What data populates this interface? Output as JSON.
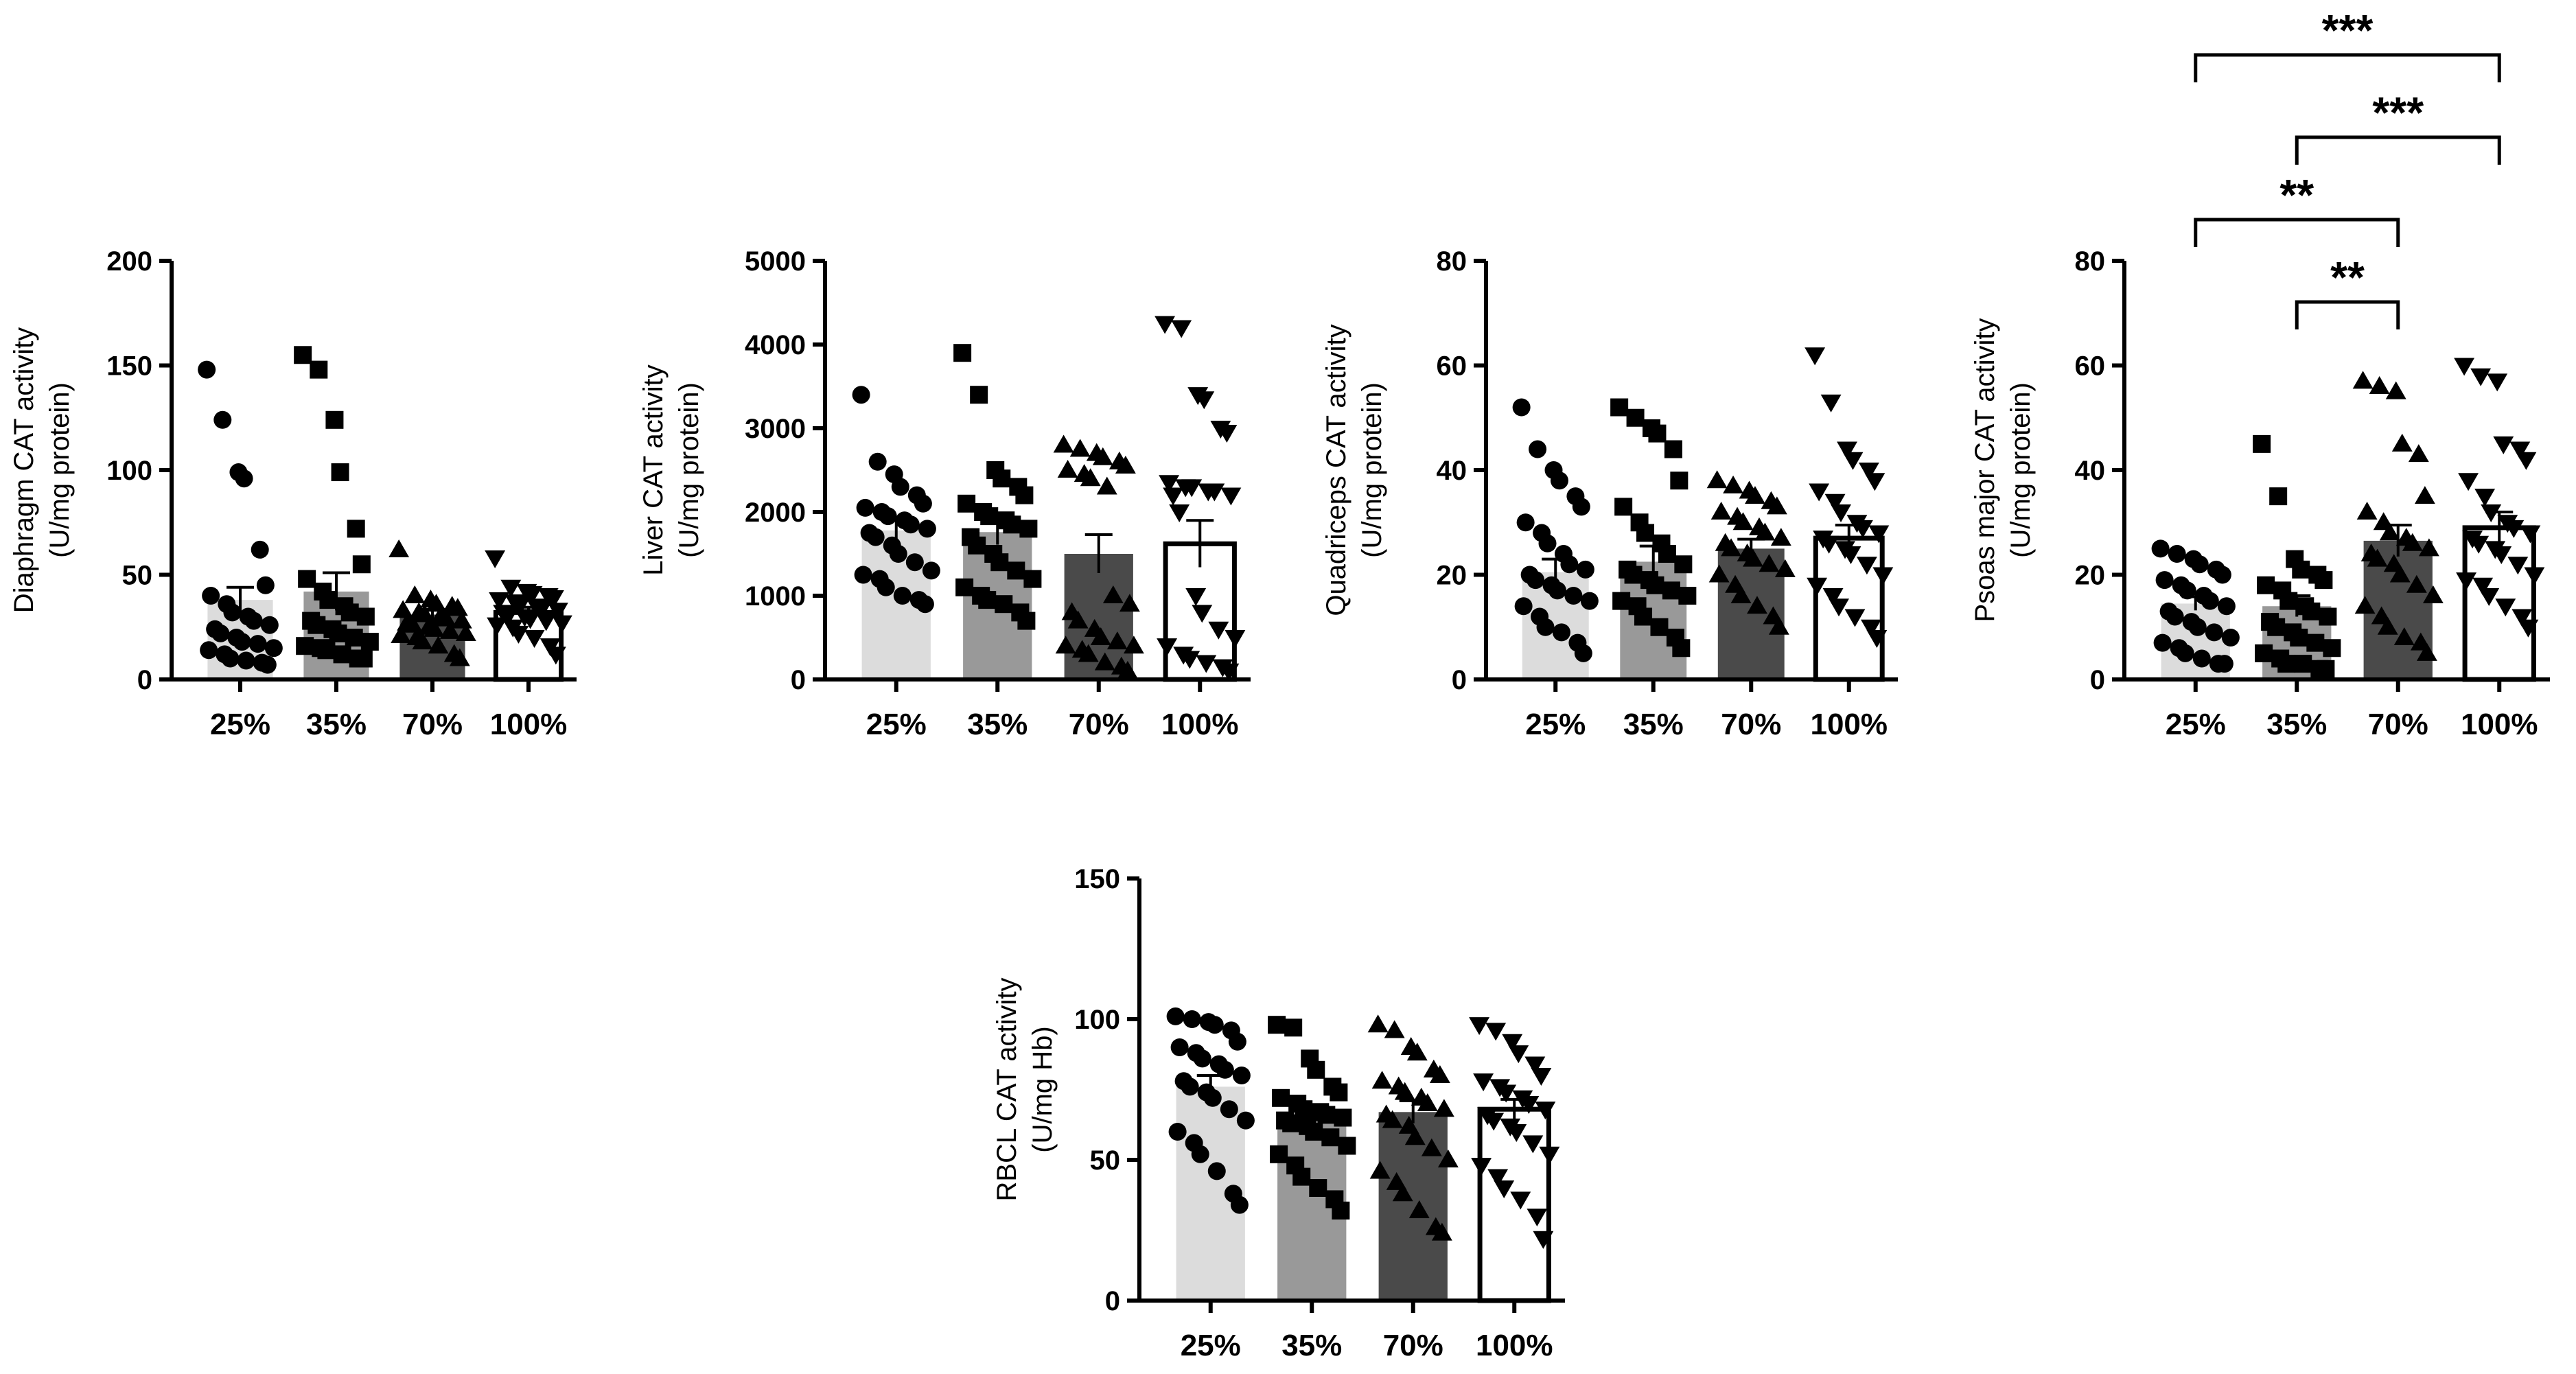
{
  "figure": {
    "background": "#ffffff"
  },
  "chart_data": [
    {
      "type": "bar",
      "id": "diaphragm",
      "title": "",
      "ylabel_line1": "Diaphragm CAT activity",
      "ylabel_line2": "(U/mg protein)",
      "categories": [
        "25%",
        "35%",
        "70%",
        "100%"
      ],
      "ylim": [
        0,
        200
      ],
      "yticks": [
        "0",
        "50",
        "100",
        "150",
        "200"
      ],
      "marker_shapes": [
        "circle",
        "square",
        "triangle-up",
        "triangle-down"
      ],
      "bar_fills": [
        "#dcdcdc",
        "#999999",
        "#4a4a4a",
        "#ffffff"
      ],
      "means": [
        38,
        42,
        31,
        32
      ],
      "sem": [
        6,
        9,
        2.5,
        2.5
      ],
      "points": [
        [
          148,
          124,
          99,
          96,
          62,
          45,
          40,
          36,
          32,
          30,
          28,
          26,
          24,
          22,
          20,
          18,
          17,
          15,
          14,
          12,
          10,
          9,
          8,
          7
        ],
        [
          155,
          148,
          124,
          99,
          72,
          55,
          48,
          42,
          38,
          35,
          32,
          30,
          28,
          26,
          24,
          22,
          20,
          18,
          16,
          15,
          14,
          12,
          10,
          10
        ],
        [
          62,
          40,
          38,
          36,
          35,
          34,
          33,
          32,
          31,
          30,
          29,
          28,
          27,
          26,
          25,
          24,
          23,
          22,
          21,
          20,
          18,
          16,
          12,
          10
        ],
        [
          58,
          44,
          42,
          41,
          40,
          39,
          38,
          37,
          36,
          35,
          34,
          33,
          32,
          31,
          30,
          29,
          28,
          27,
          26,
          25,
          22,
          20,
          16,
          12
        ]
      ],
      "significance": []
    },
    {
      "type": "bar",
      "id": "liver",
      "title": "",
      "ylabel_line1": "Liver CAT activity",
      "ylabel_line2": "(U/mg protein)",
      "categories": [
        "25%",
        "35%",
        "70%",
        "100%"
      ],
      "ylim": [
        0,
        5000
      ],
      "yticks": [
        "0",
        "1000",
        "2000",
        "3000",
        "4000",
        "5000"
      ],
      "marker_shapes": [
        "circle",
        "square",
        "triangle-up",
        "triangle-down"
      ],
      "bar_fills": [
        "#dcdcdc",
        "#999999",
        "#4a4a4a",
        "#ffffff"
      ],
      "means": [
        1780,
        1760,
        1500,
        1620
      ],
      "sem": [
        120,
        150,
        230,
        280
      ],
      "points": [
        [
          3400,
          2600,
          2450,
          2300,
          2200,
          2100,
          2050,
          2000,
          1950,
          1900,
          1850,
          1800,
          1750,
          1700,
          1600,
          1500,
          1400,
          1300,
          1250,
          1200,
          1100,
          1000,
          950,
          900
        ],
        [
          3900,
          3400,
          2500,
          2400,
          2300,
          2200,
          2100,
          2000,
          1950,
          1900,
          1850,
          1800,
          1700,
          1600,
          1500,
          1400,
          1300,
          1200,
          1100,
          1000,
          950,
          900,
          800,
          700
        ],
        [
          2800,
          2750,
          2700,
          2650,
          2600,
          2550,
          2500,
          2450,
          2400,
          2300,
          1000,
          900,
          800,
          700,
          600,
          500,
          450,
          400,
          400,
          350,
          300,
          200,
          150,
          100
        ],
        [
          4250,
          4200,
          3400,
          3350,
          3000,
          2950,
          2350,
          2300,
          2300,
          2250,
          2250,
          2200,
          2200,
          2000,
          1000,
          800,
          600,
          500,
          400,
          300,
          250,
          200,
          150,
          100
        ]
      ],
      "significance": []
    },
    {
      "type": "bar",
      "id": "quadriceps",
      "title": "",
      "ylabel_line1": "Quadriceps CAT activity",
      "ylabel_line2": "(U/mg protein)",
      "categories": [
        "25%",
        "35%",
        "70%",
        "100%"
      ],
      "ylim": [
        0,
        80
      ],
      "yticks": [
        "0",
        "20",
        "40",
        "60",
        "80"
      ],
      "marker_shapes": [
        "circle",
        "square",
        "triangle-up",
        "triangle-down"
      ],
      "bar_fills": [
        "#dcdcdc",
        "#999999",
        "#4a4a4a",
        "#ffffff"
      ],
      "means": [
        20.5,
        22.5,
        25,
        27
      ],
      "sem": [
        2.5,
        3,
        1.8,
        2.5
      ],
      "points": [
        [
          52,
          44,
          40,
          38,
          35,
          33,
          30,
          28,
          26,
          24,
          22,
          21,
          20,
          19,
          18,
          17,
          16,
          15,
          14,
          12,
          10,
          9,
          7,
          5
        ],
        [
          52,
          50,
          48,
          47,
          44,
          38,
          33,
          30,
          28,
          26,
          24,
          22,
          21,
          20,
          19,
          18,
          17,
          16,
          15,
          14,
          12,
          10,
          8,
          6
        ],
        [
          38,
          37,
          36,
          35,
          34,
          33,
          32,
          31,
          30,
          29,
          28,
          27,
          26,
          25,
          24,
          23,
          22,
          21,
          20,
          18,
          16,
          14,
          12,
          10
        ],
        [
          62,
          53,
          44,
          42,
          40,
          38,
          36,
          34,
          32,
          30,
          29,
          28,
          27,
          26,
          25,
          24,
          22,
          20,
          18,
          16,
          14,
          12,
          10,
          8
        ]
      ],
      "significance": []
    },
    {
      "type": "bar",
      "id": "psoas",
      "title": "",
      "ylabel_line1": "Psoas major CAT activity",
      "ylabel_line2": "(U/mg protein)",
      "categories": [
        "25%",
        "35%",
        "70%",
        "100%"
      ],
      "ylim": [
        0,
        80
      ],
      "yticks": [
        "0",
        "20",
        "40",
        "60",
        "80"
      ],
      "marker_shapes": [
        "circle",
        "square",
        "triangle-up",
        "triangle-down"
      ],
      "bar_fills": [
        "#dcdcdc",
        "#999999",
        "#4a4a4a",
        "#ffffff"
      ],
      "means": [
        14.5,
        14,
        26.5,
        29
      ],
      "sem": [
        1.3,
        2,
        3,
        3
      ],
      "points": [
        [
          25,
          24,
          23,
          22,
          21,
          20,
          19,
          18,
          17,
          16,
          15,
          14,
          13,
          12,
          11,
          10,
          9,
          8,
          7,
          6,
          5,
          4,
          3,
          3
        ],
        [
          45,
          35,
          23,
          21,
          20,
          19,
          18,
          17,
          15,
          14,
          13,
          12,
          11,
          10,
          9,
          8,
          7,
          6,
          5,
          4,
          3,
          3,
          2,
          2
        ],
        [
          57,
          56,
          55,
          45,
          43,
          35,
          32,
          30,
          28,
          27,
          26,
          25,
          24,
          23,
          22,
          20,
          18,
          16,
          14,
          12,
          10,
          8,
          7,
          5
        ],
        [
          60,
          58,
          57,
          45,
          44,
          42,
          38,
          35,
          32,
          30,
          29,
          28,
          27,
          26,
          25,
          24,
          22,
          20,
          19,
          18,
          16,
          14,
          12,
          10
        ]
      ],
      "significance": [
        {
          "from": 0,
          "to": 3,
          "label": "***"
        },
        {
          "from": 1,
          "to": 3,
          "label": "***"
        },
        {
          "from": 0,
          "to": 2,
          "label": "**"
        },
        {
          "from": 1,
          "to": 2,
          "label": "**"
        }
      ]
    },
    {
      "type": "bar",
      "id": "rbcl",
      "title": "",
      "ylabel_line1": "RBCL CAT activity",
      "ylabel_line2": "(U/mg Hb)",
      "categories": [
        "25%",
        "35%",
        "70%",
        "100%"
      ],
      "ylim": [
        0,
        150
      ],
      "yticks": [
        "0",
        "50",
        "100",
        "150"
      ],
      "marker_shapes": [
        "circle",
        "square",
        "triangle-up",
        "triangle-down"
      ],
      "bar_fills": [
        "#dcdcdc",
        "#999999",
        "#4a4a4a",
        "#ffffff"
      ],
      "means": [
        76,
        63,
        67,
        68
      ],
      "sem": [
        4,
        3,
        4,
        3.5
      ],
      "points": [
        [
          101,
          100,
          99,
          98,
          96,
          92,
          90,
          88,
          86,
          84,
          82,
          80,
          78,
          76,
          74,
          72,
          68,
          64,
          60,
          56,
          52,
          46,
          38,
          34
        ],
        [
          98,
          97,
          86,
          82,
          76,
          74,
          72,
          70,
          68,
          67,
          66,
          65,
          64,
          63,
          62,
          60,
          58,
          55,
          52,
          48,
          44,
          40,
          36,
          32
        ],
        [
          98,
          96,
          90,
          88,
          82,
          80,
          78,
          76,
          74,
          72,
          70,
          68,
          66,
          64,
          62,
          58,
          54,
          50,
          46,
          42,
          38,
          32,
          26,
          24
        ],
        [
          98,
          96,
          92,
          88,
          84,
          80,
          78,
          76,
          74,
          72,
          70,
          68,
          66,
          64,
          62,
          60,
          56,
          52,
          48,
          44,
          40,
          36,
          30,
          22
        ]
      ],
      "significance": []
    }
  ]
}
